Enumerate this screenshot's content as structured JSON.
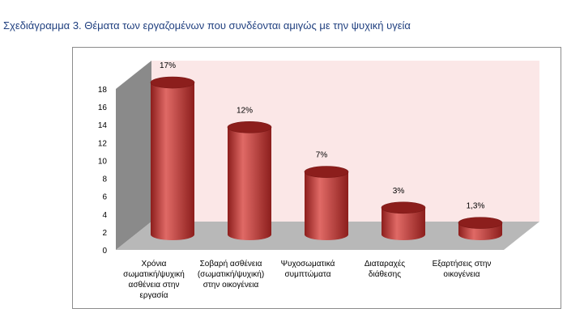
{
  "caption": "Σχεδιάγραμμα 3. Θέματα των εργαζομένων που συνδέονται αμιγώς με την ψυχική υγεία",
  "colors": {
    "bar": "#c0302e",
    "bar_light": "#e06a66",
    "bar_dark": "#8c1e1c",
    "back_wall": "#fbe7e7",
    "side_wall": "#8a8a8a",
    "floor": "#b8b8b8"
  },
  "chart_data": {
    "type": "bar",
    "title": "",
    "xlabel": "",
    "ylabel": "",
    "ylim": [
      0,
      18
    ],
    "yticks": [
      "0",
      "2",
      "4",
      "6",
      "8",
      "10",
      "12",
      "14",
      "16",
      "18"
    ],
    "grid": false,
    "legend": "none",
    "categories": [
      "Χρόνια σωματική/ψυχική ασθένεια στην εργασία",
      "Σοβαρή ασθένεια (σωματική/ψυχική) στην οικογένεια",
      "Ψυχοσωματικά συμπτώματα",
      "Διαταραχές διάθεσης",
      "Εξαρτήσεις στην οικογένεια"
    ],
    "category_lines": [
      [
        "Χρόνια",
        "σωματική/ψυχική",
        "ασθένεια στην",
        "εργασία"
      ],
      [
        "Σοβαρή ασθένεια",
        "(σωματική/ψυχική)",
        "στην οικογένεια"
      ],
      [
        "Ψυχοσωματικά",
        "συμπτώματα"
      ],
      [
        "Διαταραχές",
        "διάθεσης"
      ],
      [
        "Εξαρτήσεις στην",
        "οικογένεια"
      ]
    ],
    "values": [
      17,
      12,
      7,
      3,
      1.3
    ],
    "data_labels": [
      "17%",
      "12%",
      "7%",
      "3%",
      "1,3%"
    ]
  }
}
